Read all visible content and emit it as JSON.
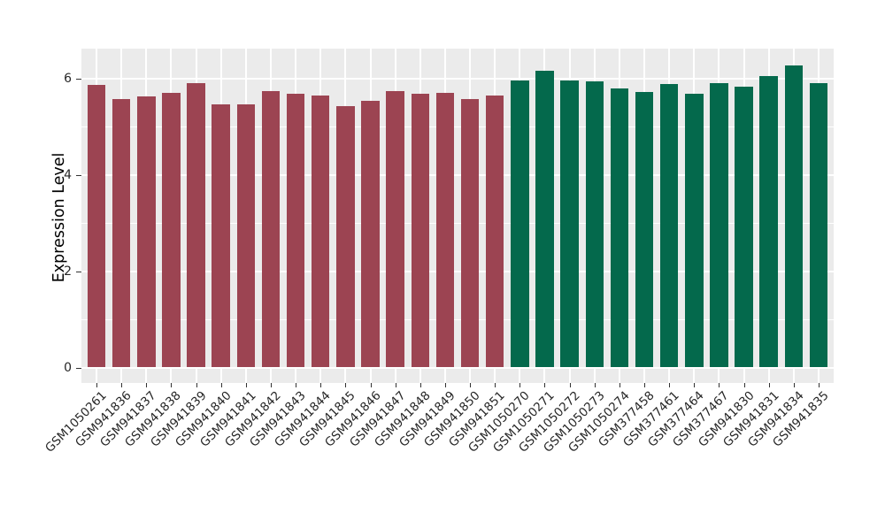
{
  "chart_data": {
    "type": "bar",
    "title": "",
    "xlabel": "",
    "ylabel": "Expression Level",
    "ylim": [
      0,
      6.6
    ],
    "y_ticks": [
      "0",
      "2",
      "4",
      "6"
    ],
    "y_tick_values": [
      0,
      2,
      4,
      6
    ],
    "y_minor_values": [
      1,
      3,
      5
    ],
    "grid": "on",
    "legend_position": "none",
    "panel_background": "#EBEBEB",
    "grid_color": "#FFFFFF",
    "tick_text_color": "#262626",
    "group_colors": {
      "group1": "#9C4452",
      "group2": "#04694C"
    },
    "bars": [
      {
        "label": "GSM1050261",
        "value": 5.86,
        "group": "group1"
      },
      {
        "label": "GSM941836",
        "value": 5.56,
        "group": "group1"
      },
      {
        "label": "GSM941837",
        "value": 5.63,
        "group": "group1"
      },
      {
        "label": "GSM941838",
        "value": 5.69,
        "group": "group1"
      },
      {
        "label": "GSM941839",
        "value": 5.9,
        "group": "group1"
      },
      {
        "label": "GSM941840",
        "value": 5.45,
        "group": "group1"
      },
      {
        "label": "GSM941841",
        "value": 5.45,
        "group": "group1"
      },
      {
        "label": "GSM941842",
        "value": 5.74,
        "group": "group1"
      },
      {
        "label": "GSM941843",
        "value": 5.67,
        "group": "group1"
      },
      {
        "label": "GSM941844",
        "value": 5.64,
        "group": "group1"
      },
      {
        "label": "GSM941845",
        "value": 5.42,
        "group": "group1"
      },
      {
        "label": "GSM941846",
        "value": 5.53,
        "group": "group1"
      },
      {
        "label": "GSM941847",
        "value": 5.73,
        "group": "group1"
      },
      {
        "label": "GSM941848",
        "value": 5.67,
        "group": "group1"
      },
      {
        "label": "GSM941849",
        "value": 5.7,
        "group": "group1"
      },
      {
        "label": "GSM941850",
        "value": 5.56,
        "group": "group1"
      },
      {
        "label": "GSM941851",
        "value": 5.64,
        "group": "group1"
      },
      {
        "label": "GSM1050270",
        "value": 5.96,
        "group": "group2"
      },
      {
        "label": "GSM1050271",
        "value": 6.16,
        "group": "group2"
      },
      {
        "label": "GSM1050272",
        "value": 5.95,
        "group": "group2"
      },
      {
        "label": "GSM1050273",
        "value": 5.94,
        "group": "group2"
      },
      {
        "label": "GSM1050274",
        "value": 5.79,
        "group": "group2"
      },
      {
        "label": "GSM377458",
        "value": 5.72,
        "group": "group2"
      },
      {
        "label": "GSM377461",
        "value": 5.88,
        "group": "group2"
      },
      {
        "label": "GSM377464",
        "value": 5.68,
        "group": "group2"
      },
      {
        "label": "GSM377467",
        "value": 5.89,
        "group": "group2"
      },
      {
        "label": "GSM941830",
        "value": 5.83,
        "group": "group2"
      },
      {
        "label": "GSM941831",
        "value": 6.05,
        "group": "group2"
      },
      {
        "label": "GSM941834",
        "value": 6.27,
        "group": "group2"
      },
      {
        "label": "GSM941835",
        "value": 5.9,
        "group": "group2"
      }
    ]
  }
}
